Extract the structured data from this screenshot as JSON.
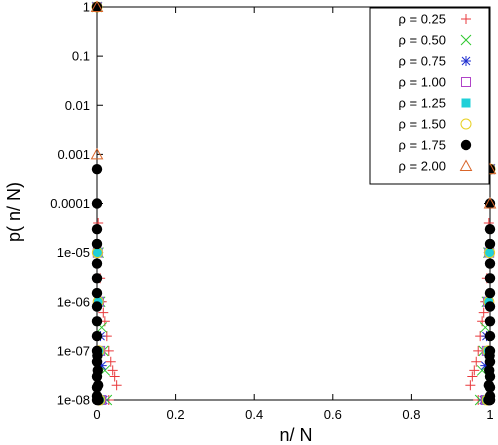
{
  "chart_data": {
    "type": "scatter",
    "xlabel": "n/ N",
    "ylabel": "p( n/ N)",
    "xlim": [
      0,
      1
    ],
    "ylim": [
      1e-08,
      1
    ],
    "yscale": "log",
    "grid": false,
    "legend_position": "top-right",
    "x_ticks": [
      "0",
      "0.2",
      "0.4",
      "0.6",
      "0.8",
      "1"
    ],
    "y_ticks": [
      "1e-08",
      "1e-07",
      "1e-06",
      "1e-05",
      "0.0001",
      "0.001",
      "0.01",
      "0.1",
      "1"
    ],
    "series": [
      {
        "name": "ρ = 0.25",
        "marker": "plus",
        "color": "#e8393c",
        "x": [
          0,
          0.003,
          0.008,
          0.012,
          0.016,
          0.02,
          0.025,
          0.03,
          0.035,
          0.04,
          0.045,
          0.05,
          0.01,
          0.02,
          0.03,
          1,
          0.997,
          0.992,
          0.988,
          0.984,
          0.98,
          0.975,
          0.97,
          0.965,
          0.96,
          0.955,
          0.95,
          0.99,
          0.98,
          0.97
        ],
        "y": [
          1,
          4e-05,
          3e-06,
          1e-06,
          6e-07,
          4e-07,
          2e-07,
          1e-07,
          6e-08,
          4e-08,
          3e-08,
          2e-08,
          1e-08,
          1e-08,
          1e-08,
          0.0005,
          4e-05,
          3e-06,
          1e-06,
          6e-07,
          4e-07,
          2e-07,
          1e-07,
          6e-08,
          4e-08,
          3e-08,
          2e-08,
          1e-08,
          1e-08,
          1e-08
        ]
      },
      {
        "name": "ρ = 0.50",
        "marker": "x",
        "color": "#2ec72e",
        "x": [
          0,
          0.004,
          0.008,
          0.012,
          0.016,
          0.02,
          0.025,
          1,
          0.996,
          0.992,
          0.988,
          0.984,
          0.98,
          0.975
        ],
        "y": [
          1,
          1e-05,
          1e-06,
          3e-07,
          1e-07,
          4e-08,
          1e-08,
          0.0005,
          1e-05,
          1e-06,
          3e-07,
          1e-07,
          4e-08,
          1e-08
        ]
      },
      {
        "name": "ρ = 0.75",
        "marker": "star",
        "color": "#1f2fd0",
        "x": [
          0,
          0.003,
          0.006,
          0.009,
          0.012,
          0.016,
          1,
          0.997,
          0.994,
          0.991,
          0.988,
          0.984
        ],
        "y": [
          1,
          1e-05,
          1e-06,
          2e-07,
          5e-08,
          1e-08,
          0.0005,
          1e-05,
          1e-06,
          2e-07,
          5e-08,
          1e-08
        ]
      },
      {
        "name": "ρ = 1.00",
        "marker": "square-open",
        "color": "#b043c8",
        "x": [
          0,
          0.002,
          0.005,
          0.008,
          0.011,
          1,
          0.998,
          0.995,
          0.992,
          0.989
        ],
        "y": [
          1,
          1e-05,
          1e-06,
          1e-07,
          1e-08,
          0.0005,
          1e-05,
          1e-06,
          1e-07,
          1e-08
        ]
      },
      {
        "name": "ρ = 1.25",
        "marker": "square-filled",
        "color": "#20d0d8",
        "x": [
          0,
          0.002,
          0.004,
          0.006,
          0.008,
          1,
          0.998,
          0.996,
          0.994,
          0.992
        ],
        "y": [
          1,
          1e-05,
          1e-06,
          1e-07,
          1e-08,
          0.0005,
          1e-05,
          1e-06,
          1e-07,
          1e-08
        ]
      },
      {
        "name": "ρ = 1.50",
        "marker": "circle-open",
        "color": "#e8d020",
        "x": [
          0,
          0.001,
          0.003,
          0.005,
          0.007,
          1,
          0.999,
          0.997,
          0.995,
          0.993
        ],
        "y": [
          1,
          1e-05,
          1e-06,
          1e-07,
          1e-08,
          0.0005,
          1e-05,
          1e-06,
          1e-07,
          1e-08
        ]
      },
      {
        "name": "ρ = 1.75",
        "marker": "circle-filled",
        "color": "#000000",
        "x": [
          0,
          0,
          0,
          0,
          0,
          0,
          0,
          0,
          0,
          0,
          0,
          0,
          0,
          0,
          0,
          0,
          0,
          0.001,
          0.002,
          0.003,
          0.003,
          0.004,
          1,
          1,
          1,
          1,
          1,
          1,
          1,
          1,
          1,
          1,
          1,
          1,
          1,
          1,
          1,
          1,
          1,
          0.999,
          0.998,
          0.997,
          0.997,
          0.996
        ],
        "y": [
          1,
          0.0005,
          0.0001,
          3e-05,
          1.5e-05,
          6e-06,
          3e-06,
          1.5e-06,
          8e-07,
          4e-07,
          2e-07,
          1e-07,
          6e-08,
          3e-08,
          1.8e-08,
          1.2e-08,
          1e-08,
          8e-08,
          4e-08,
          2e-08,
          1e-08,
          1e-08,
          0.0005,
          0.0001,
          3e-05,
          1.5e-05,
          6e-06,
          3e-06,
          1.5e-06,
          8e-07,
          4e-07,
          2e-07,
          1e-07,
          6e-08,
          3e-08,
          1.8e-08,
          1.2e-08,
          1e-08,
          1e-08,
          8e-08,
          4e-08,
          2e-08,
          1e-08,
          1e-08
        ]
      },
      {
        "name": "ρ = 2.00",
        "marker": "triangle-open",
        "color": "#d9652a",
        "x": [
          0,
          0,
          1,
          1
        ],
        "y": [
          1,
          0.001,
          0.0005,
          0.0001
        ]
      }
    ]
  }
}
